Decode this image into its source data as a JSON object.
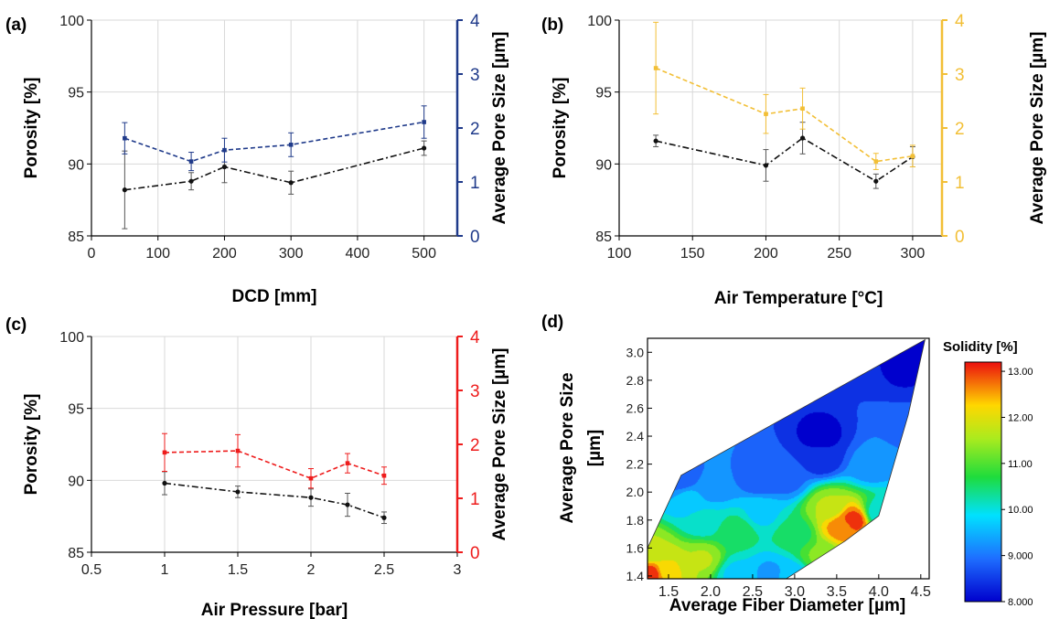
{
  "chart_data": [
    {
      "panel": "(a)",
      "type": "line",
      "xlabel": "DCD [mm]",
      "ylabel": "Porosity  [%]",
      "y2label": "Average Pore Size [µm]",
      "xlim": [
        0,
        550
      ],
      "ylim": [
        85,
        100
      ],
      "y2lim": [
        0,
        4
      ],
      "xticks": [
        0,
        100,
        200,
        300,
        400,
        500
      ],
      "yticks": [
        85,
        90,
        95,
        100
      ],
      "y2ticks": [
        0,
        1,
        2,
        3,
        4
      ],
      "grid": true,
      "axis_color": "#1f3a8a",
      "series": [
        {
          "axis": "left",
          "style": "dashdot",
          "color": "#111111",
          "x": [
            50,
            150,
            200,
            300,
            500
          ],
          "y": [
            88.2,
            88.8,
            89.8,
            88.7,
            91.1
          ],
          "err": [
            2.7,
            0.6,
            1.1,
            0.8,
            0.5
          ]
        },
        {
          "axis": "right",
          "style": "dashed",
          "color": "#1f3a8a",
          "x": [
            50,
            150,
            200,
            300,
            500
          ],
          "y": [
            1.81,
            1.38,
            1.59,
            1.69,
            2.11
          ],
          "err": [
            0.29,
            0.17,
            0.22,
            0.22,
            0.3
          ]
        }
      ]
    },
    {
      "panel": "(b)",
      "type": "line",
      "xlabel": "Air Temperature [°C]",
      "ylabel": "Porosity  [%]",
      "y2label": "Average Pore Size [µm]",
      "xlim": [
        100,
        320
      ],
      "ylim": [
        85,
        100
      ],
      "y2lim": [
        0,
        4
      ],
      "xticks": [
        100,
        150,
        200,
        250,
        300
      ],
      "yticks": [
        85,
        90,
        95,
        100
      ],
      "y2ticks": [
        0,
        1,
        2,
        3,
        4
      ],
      "grid": true,
      "axis_color": "#f2bf36",
      "series": [
        {
          "axis": "left",
          "style": "dashdot",
          "color": "#111111",
          "x": [
            125,
            200,
            225,
            275,
            300
          ],
          "y": [
            91.6,
            89.9,
            91.8,
            88.8,
            90.5
          ],
          "err": [
            0.4,
            1.1,
            1.1,
            0.5,
            0.7
          ]
        },
        {
          "axis": "right",
          "style": "dashed",
          "color": "#f2bf36",
          "x": [
            125,
            200,
            225,
            275,
            300
          ],
          "y": [
            3.11,
            2.26,
            2.36,
            1.38,
            1.48
          ],
          "err": [
            0.85,
            0.36,
            0.38,
            0.15,
            0.2
          ]
        }
      ]
    },
    {
      "panel": "(c)",
      "type": "line",
      "xlabel": "Air Pressure [bar]",
      "ylabel": "Porosity  [%]",
      "y2label": "Average Pore Size [µm]",
      "xlim": [
        0.5,
        3
      ],
      "ylim": [
        85,
        100
      ],
      "y2lim": [
        0,
        4
      ],
      "xticks": [
        0.5,
        1,
        1.5,
        2,
        2.5,
        3
      ],
      "yticks": [
        85,
        90,
        95,
        100
      ],
      "y2ticks": [
        0,
        1,
        2,
        3,
        4
      ],
      "grid": true,
      "axis_color": "#ee1c1c",
      "series": [
        {
          "axis": "left",
          "style": "dashdot",
          "color": "#111111",
          "x": [
            1,
            1.5,
            2,
            2.25,
            2.5
          ],
          "y": [
            89.8,
            89.2,
            88.8,
            88.3,
            87.4
          ],
          "err": [
            0.8,
            0.4,
            0.6,
            0.8,
            0.4
          ]
        },
        {
          "axis": "right",
          "style": "dashed",
          "color": "#ee1c1c",
          "x": [
            1,
            1.5,
            2,
            2.25,
            2.5
          ],
          "y": [
            1.85,
            1.88,
            1.37,
            1.65,
            1.42
          ],
          "err": [
            0.35,
            0.3,
            0.18,
            0.18,
            0.16
          ]
        }
      ]
    },
    {
      "panel": "(d)",
      "type": "heatmap",
      "xlabel": "Average Fiber Diameter [µm]",
      "ylabel": "Average Pore Size [µm]",
      "xlim": [
        1.25,
        4.6
      ],
      "ylim": [
        1.38,
        3.1
      ],
      "xticks": [
        "1.5",
        "2.0",
        "2.5",
        "3.0",
        "3.5",
        "4.0",
        "4.5"
      ],
      "yticks": [
        "1.4",
        "1.6",
        "1.8",
        "2.0",
        "2.2",
        "2.4",
        "2.6",
        "2.8",
        "3.0"
      ],
      "colorbar_title": "Solidity  [%]",
      "colorbar_ticks": [
        "8.000",
        "9.000",
        "10.00",
        "11.00",
        "12.00",
        "13.00"
      ],
      "colorbar_range": [
        8.0,
        13.2
      ],
      "hull": [
        [
          1.25,
          1.38
        ],
        [
          1.25,
          1.6
        ],
        [
          1.65,
          2.12
        ],
        [
          4.55,
          3.09
        ],
        [
          4.35,
          2.55
        ],
        [
          4.0,
          1.83
        ],
        [
          3.6,
          1.65
        ],
        [
          2.9,
          1.38
        ]
      ],
      "field_points": [
        [
          1.28,
          1.42,
          13.0
        ],
        [
          1.3,
          1.58,
          11.6
        ],
        [
          1.5,
          1.45,
          12.0
        ],
        [
          1.9,
          1.52,
          11.6
        ],
        [
          2.3,
          1.72,
          10.6
        ],
        [
          2.7,
          1.42,
          9.4
        ],
        [
          2.3,
          1.42,
          9.8
        ],
        [
          1.9,
          1.8,
          10.0
        ],
        [
          1.75,
          1.95,
          9.6
        ],
        [
          1.65,
          2.1,
          8.8
        ],
        [
          2.6,
          2.1,
          8.7
        ],
        [
          3.3,
          2.4,
          8.1
        ],
        [
          3.3,
          2.25,
          8.3
        ],
        [
          4.55,
          3.09,
          8.0
        ],
        [
          4.3,
          2.85,
          8.2
        ],
        [
          2.6,
          1.85,
          9.8
        ],
        [
          3.0,
          1.7,
          10.5
        ],
        [
          3.4,
          1.9,
          11.6
        ],
        [
          3.7,
          1.8,
          13.0
        ],
        [
          3.55,
          1.75,
          12.6
        ],
        [
          3.3,
          1.55,
          11.2
        ],
        [
          4.0,
          1.85,
          10.0
        ],
        [
          4.3,
          2.45,
          9.0
        ],
        [
          3.9,
          2.2,
          9.2
        ],
        [
          2.95,
          1.4,
          9.6
        ],
        [
          2.0,
          2.05,
          9.1
        ],
        [
          2.9,
          2.1,
          8.9
        ]
      ]
    }
  ],
  "panels": {
    "a": {
      "label": "(a)"
    },
    "b": {
      "label": "(b)"
    },
    "c": {
      "label": "(c)"
    },
    "d": {
      "label": "(d)"
    }
  }
}
